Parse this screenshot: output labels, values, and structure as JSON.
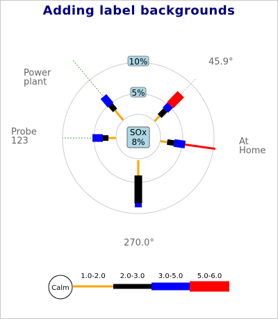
{
  "chart_data": {
    "type": "windrose",
    "title": "Adding label backgrounds",
    "center_label": {
      "pollutant": "SOx",
      "calm_pct": "8%"
    },
    "range_labels": [
      "5%",
      "10%"
    ],
    "range_max_pct": 10,
    "directions": [
      {
        "label": "Power\nplant",
        "angle": 130
      },
      {
        "label": "At\nHome",
        "angle": 352
      },
      {
        "label": "270.0°",
        "angle": 270
      },
      {
        "label": "Probe\n123",
        "angle": 180
      },
      {
        "label": "45.9°",
        "angle": 45.9
      }
    ],
    "bins": [
      {
        "label": "1.0-2.0",
        "color": "#ffa500"
      },
      {
        "label": "2.0-3.0",
        "color": "#000000"
      },
      {
        "label": "3.0-5.0",
        "color": "#0000ff"
      },
      {
        "label": "5.0-6.0",
        "color": "#ff0000"
      }
    ],
    "calm_label": "Calm",
    "legend_position": "bottom",
    "colors": {
      "title": "#000080",
      "label_bg": "#add8e6",
      "circle": "#cccccc",
      "guide": "#008000"
    }
  }
}
